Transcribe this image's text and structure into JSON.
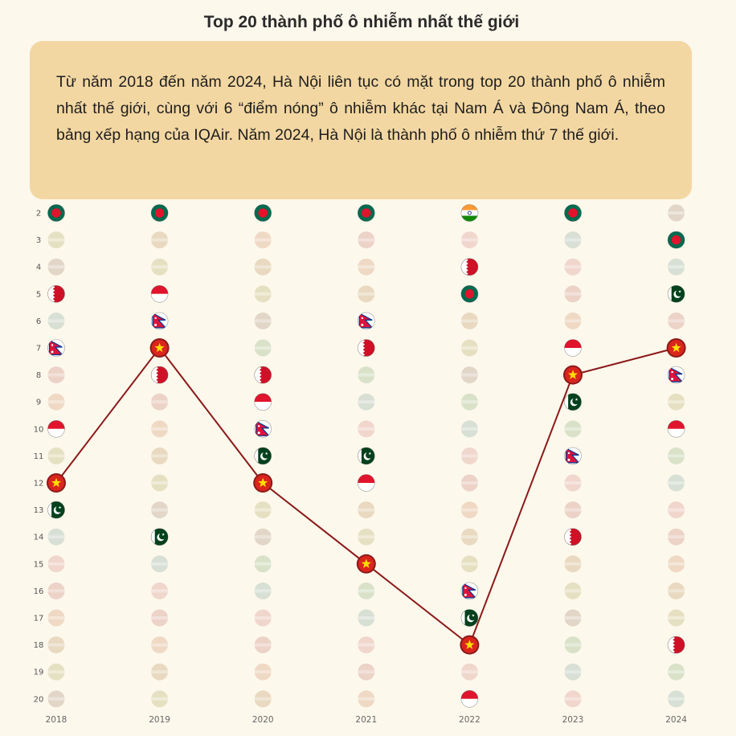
{
  "title": "Top 20 thành phố ô nhiễm nhất thế giới",
  "callout": "Từ năm 2018 đến năm 2024, Hà Nội liên tục có mặt trong top 20 thành phố ô nhiễm nhất thế giới, cùng với 6 “điểm nóng” ô nhiễm khác tại Nam Á và Đông Nam Á, theo bảng xếp hạng của IQAir. Năm 2024, Hà Nội là thành phố ô nhiễm thứ 7 thế giới.",
  "colors": {
    "line": "#8b1a1a",
    "background": "#fdf8ec",
    "callout": "#f3d7a2"
  },
  "chart_data": {
    "type": "line",
    "title": "Top 20 thành phố ô nhiễm nhất thế giới",
    "years": [
      "2018",
      "2019",
      "2020",
      "2021",
      "2022",
      "2023",
      "2024"
    ],
    "ranks": [
      "2",
      "3",
      "4",
      "5",
      "6",
      "7",
      "8",
      "9",
      "10",
      "11",
      "12",
      "13",
      "14",
      "15",
      "16",
      "17",
      "18",
      "19",
      "20"
    ],
    "series": [
      {
        "name": "Hà Nội",
        "values": [
          12,
          7,
          12,
          15,
          18,
          8,
          7
        ]
      }
    ],
    "ylim": [
      2,
      20
    ],
    "highlighted_flags": [
      [
        "bangladesh",
        null,
        null,
        "bahrain",
        null,
        "nepal",
        null,
        null,
        "indonesia",
        null,
        "vietnam",
        "pakistan",
        null,
        null,
        null,
        null,
        null,
        null,
        null
      ],
      [
        "bangladesh",
        null,
        null,
        "indonesia",
        "nepal",
        "vietnam",
        "bahrain",
        null,
        null,
        null,
        null,
        null,
        "pakistan",
        null,
        null,
        null,
        null,
        null,
        null
      ],
      [
        "bangladesh",
        null,
        null,
        null,
        null,
        null,
        "bahrain",
        "indonesia",
        "nepal",
        "pakistan",
        "vietnam",
        null,
        null,
        null,
        null,
        null,
        null,
        null,
        null
      ],
      [
        "bangladesh",
        null,
        null,
        null,
        "nepal",
        "bahrain",
        null,
        null,
        null,
        "pakistan",
        "indonesia",
        null,
        null,
        "vietnam",
        null,
        null,
        null,
        null,
        null
      ],
      [
        "india",
        null,
        "bahrain",
        "bangladesh",
        null,
        null,
        null,
        null,
        null,
        null,
        null,
        null,
        null,
        null,
        "nepal",
        "pakistan",
        "vietnam",
        null,
        "indonesia"
      ],
      [
        "bangladesh",
        null,
        null,
        null,
        null,
        "indonesia",
        "vietnam",
        "pakistan",
        null,
        "nepal",
        null,
        null,
        "bahrain",
        null,
        null,
        null,
        null,
        null,
        null
      ],
      [
        null,
        "bangladesh",
        null,
        "pakistan",
        null,
        "vietnam",
        "nepal",
        null,
        "indonesia",
        null,
        null,
        null,
        null,
        null,
        null,
        null,
        "bahrain",
        null,
        null
      ]
    ]
  }
}
